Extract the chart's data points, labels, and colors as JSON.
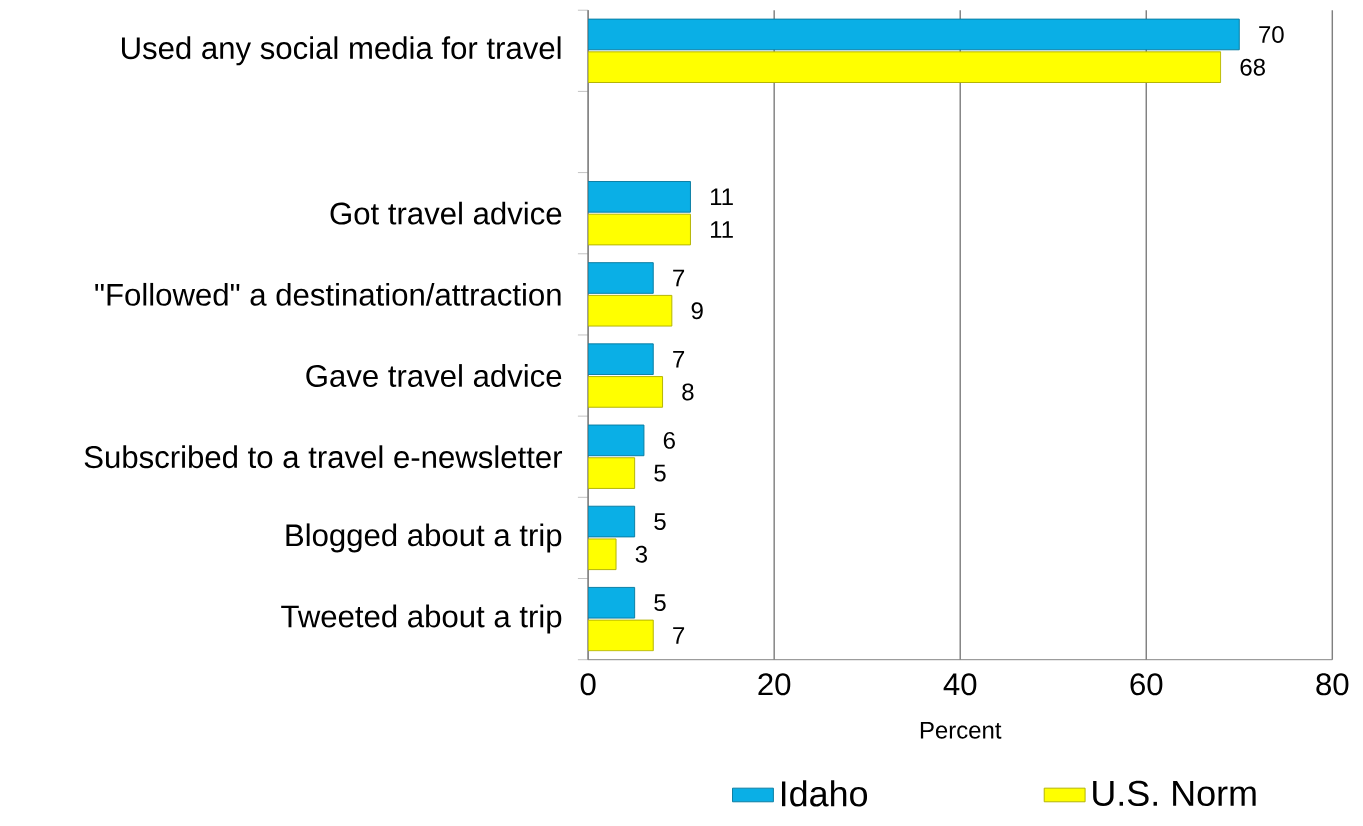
{
  "chart_data": {
    "type": "bar",
    "orientation": "horizontal",
    "categories": [
      "Used any social media for travel",
      null,
      "Got travel advice",
      "\"Followed\" a destination/attraction",
      "Gave travel advice",
      "Subscribed to a travel e-newsletter",
      "Blogged about a trip",
      "Tweeted about a trip"
    ],
    "series": [
      {
        "name": "Idaho",
        "color": "#0aafe6",
        "values": [
          70,
          null,
          11,
          7,
          7,
          6,
          5,
          5
        ]
      },
      {
        "name": "U.S. Norm",
        "color": "#ffff00",
        "values": [
          68,
          null,
          11,
          9,
          8,
          5,
          3,
          7
        ]
      }
    ],
    "xlim": [
      0,
      80
    ],
    "xticks": [
      0,
      20,
      40,
      60,
      80
    ],
    "xlabel": "Percent",
    "grid": "x",
    "legend": "bottom",
    "data_labels": true
  }
}
